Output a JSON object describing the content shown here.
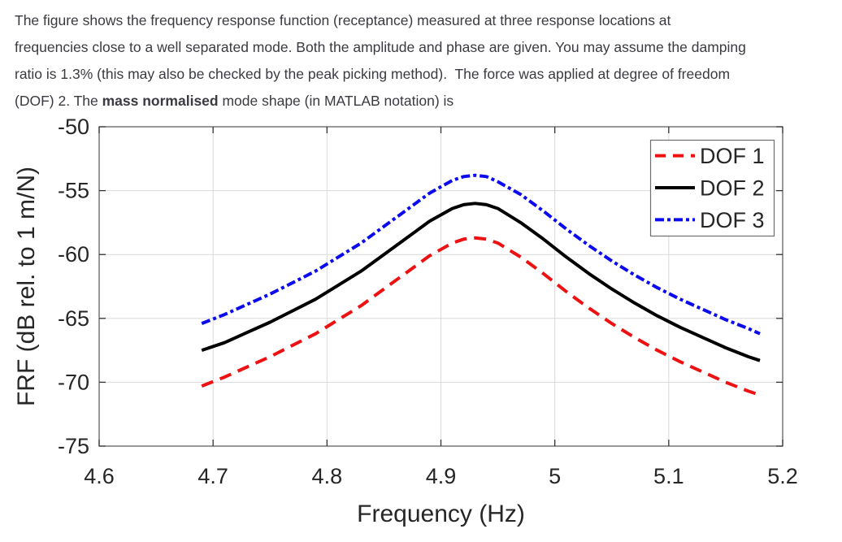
{
  "question": {
    "lines": [
      [
        {
          "text": "The figure shows the frequency response function (receptance) measured at three response locations at",
          "bold": false
        }
      ],
      [
        {
          "text": "frequencies close to a well separated mode. Both the amplitude and phase are given. You may assume the damping",
          "bold": false
        }
      ],
      [
        {
          "text": "ratio is 1.3% (this may also be checked by the peak picking method).  The force was applied at degree of freedom",
          "bold": false
        }
      ],
      [
        {
          "text": "(DOF) 2. The ",
          "bold": false
        },
        {
          "text": "mass normalised",
          "bold": true
        },
        {
          "text": " mode shape (in MATLAB notation) is",
          "bold": false
        }
      ]
    ]
  },
  "chart_data": {
    "type": "line",
    "title": "",
    "xlabel": "Frequency (Hz)",
    "ylabel": "FRF (dB rel. to 1 m/N)",
    "xlim": [
      4.6,
      5.2
    ],
    "ylim": [
      -75,
      -50
    ],
    "grid": true,
    "legend_position": "top-right",
    "x_ticks": [
      4.6,
      4.7,
      4.8,
      4.9,
      5.0,
      5.1,
      5.2
    ],
    "x_tick_labels": [
      "4.6",
      "4.7",
      "4.8",
      "4.9",
      "5",
      "5.1",
      "5.2"
    ],
    "y_ticks": [
      -50,
      -55,
      -60,
      -65,
      -70,
      -75
    ],
    "y_tick_labels": [
      "-50",
      "-55",
      "-60",
      "-65",
      "-70",
      "-75"
    ],
    "x": [
      4.69,
      4.71,
      4.73,
      4.75,
      4.77,
      4.79,
      4.81,
      4.83,
      4.85,
      4.87,
      4.89,
      4.91,
      4.92,
      4.93,
      4.94,
      4.95,
      4.97,
      4.99,
      5.01,
      5.03,
      5.05,
      5.07,
      5.09,
      5.11,
      5.13,
      5.15,
      5.17,
      5.18
    ],
    "series": [
      {
        "name": "DOF 1",
        "color": "#ee1111",
        "line_style": "dashed",
        "values": [
          -70.3,
          -69.6,
          -68.8,
          -68.0,
          -67.1,
          -66.2,
          -65.1,
          -64.0,
          -62.7,
          -61.4,
          -60.1,
          -59.1,
          -58.8,
          -58.7,
          -58.8,
          -59.1,
          -60.2,
          -61.5,
          -62.9,
          -64.2,
          -65.4,
          -66.5,
          -67.5,
          -68.4,
          -69.2,
          -70.0,
          -70.7,
          -71.0
        ]
      },
      {
        "name": "DOF 2",
        "color": "#000000",
        "line_style": "solid",
        "values": [
          -67.5,
          -66.9,
          -66.1,
          -65.3,
          -64.4,
          -63.5,
          -62.4,
          -61.3,
          -60.0,
          -58.7,
          -57.4,
          -56.4,
          -56.1,
          -56.0,
          -56.1,
          -56.4,
          -57.5,
          -58.8,
          -60.2,
          -61.5,
          -62.7,
          -63.8,
          -64.8,
          -65.7,
          -66.5,
          -67.3,
          -68.0,
          -68.3
        ]
      },
      {
        "name": "DOF 3",
        "color": "#0b0bee",
        "line_style": "dash-dot",
        "values": [
          -65.4,
          -64.7,
          -63.9,
          -63.1,
          -62.2,
          -61.3,
          -60.2,
          -59.1,
          -57.8,
          -56.5,
          -55.2,
          -54.2,
          -53.9,
          -53.8,
          -53.9,
          -54.3,
          -55.3,
          -56.6,
          -58.0,
          -59.3,
          -60.5,
          -61.6,
          -62.6,
          -63.5,
          -64.3,
          -65.1,
          -65.8,
          -66.2
        ]
      }
    ],
    "colors": {
      "axis_frame": "#555555",
      "tick": "#333333",
      "grid": "#d9d9d9",
      "label_text": "#262626",
      "legend_border": "#6e6e6e",
      "legend_fill": "#ffffff"
    }
  }
}
